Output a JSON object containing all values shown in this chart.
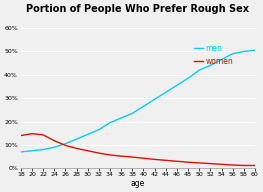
{
  "title": "Portion of People Who Prefer Rough Sex",
  "xlabel": "age",
  "ages": [
    18,
    20,
    22,
    24,
    26,
    28,
    30,
    32,
    34,
    36,
    38,
    40,
    42,
    44,
    46,
    48,
    50,
    52,
    54,
    56,
    58,
    60
  ],
  "men": [
    0.07,
    0.075,
    0.08,
    0.09,
    0.105,
    0.125,
    0.145,
    0.165,
    0.195,
    0.215,
    0.235,
    0.265,
    0.295,
    0.325,
    0.355,
    0.385,
    0.42,
    0.44,
    0.465,
    0.49,
    0.5,
    0.505
  ],
  "women": [
    0.14,
    0.148,
    0.143,
    0.118,
    0.098,
    0.085,
    0.075,
    0.065,
    0.057,
    0.052,
    0.048,
    0.043,
    0.038,
    0.034,
    0.03,
    0.026,
    0.023,
    0.02,
    0.017,
    0.014,
    0.012,
    0.012
  ],
  "men_color": "#00cfff",
  "women_color": "#dd1100",
  "bg_color": "#f0f0f0",
  "grid_color": "#ffffff",
  "title_fontsize": 7,
  "tick_fontsize": 4.5,
  "label_fontsize": 5.5,
  "legend_fontsize": 5.5,
  "ylim": [
    0.0,
    0.65
  ],
  "yticks": [
    0.0,
    0.1,
    0.2,
    0.3,
    0.4,
    0.5,
    0.6
  ],
  "ytick_labels": [
    "0%",
    "10%",
    "20%",
    "30%",
    "40%",
    "50%",
    "60%"
  ]
}
